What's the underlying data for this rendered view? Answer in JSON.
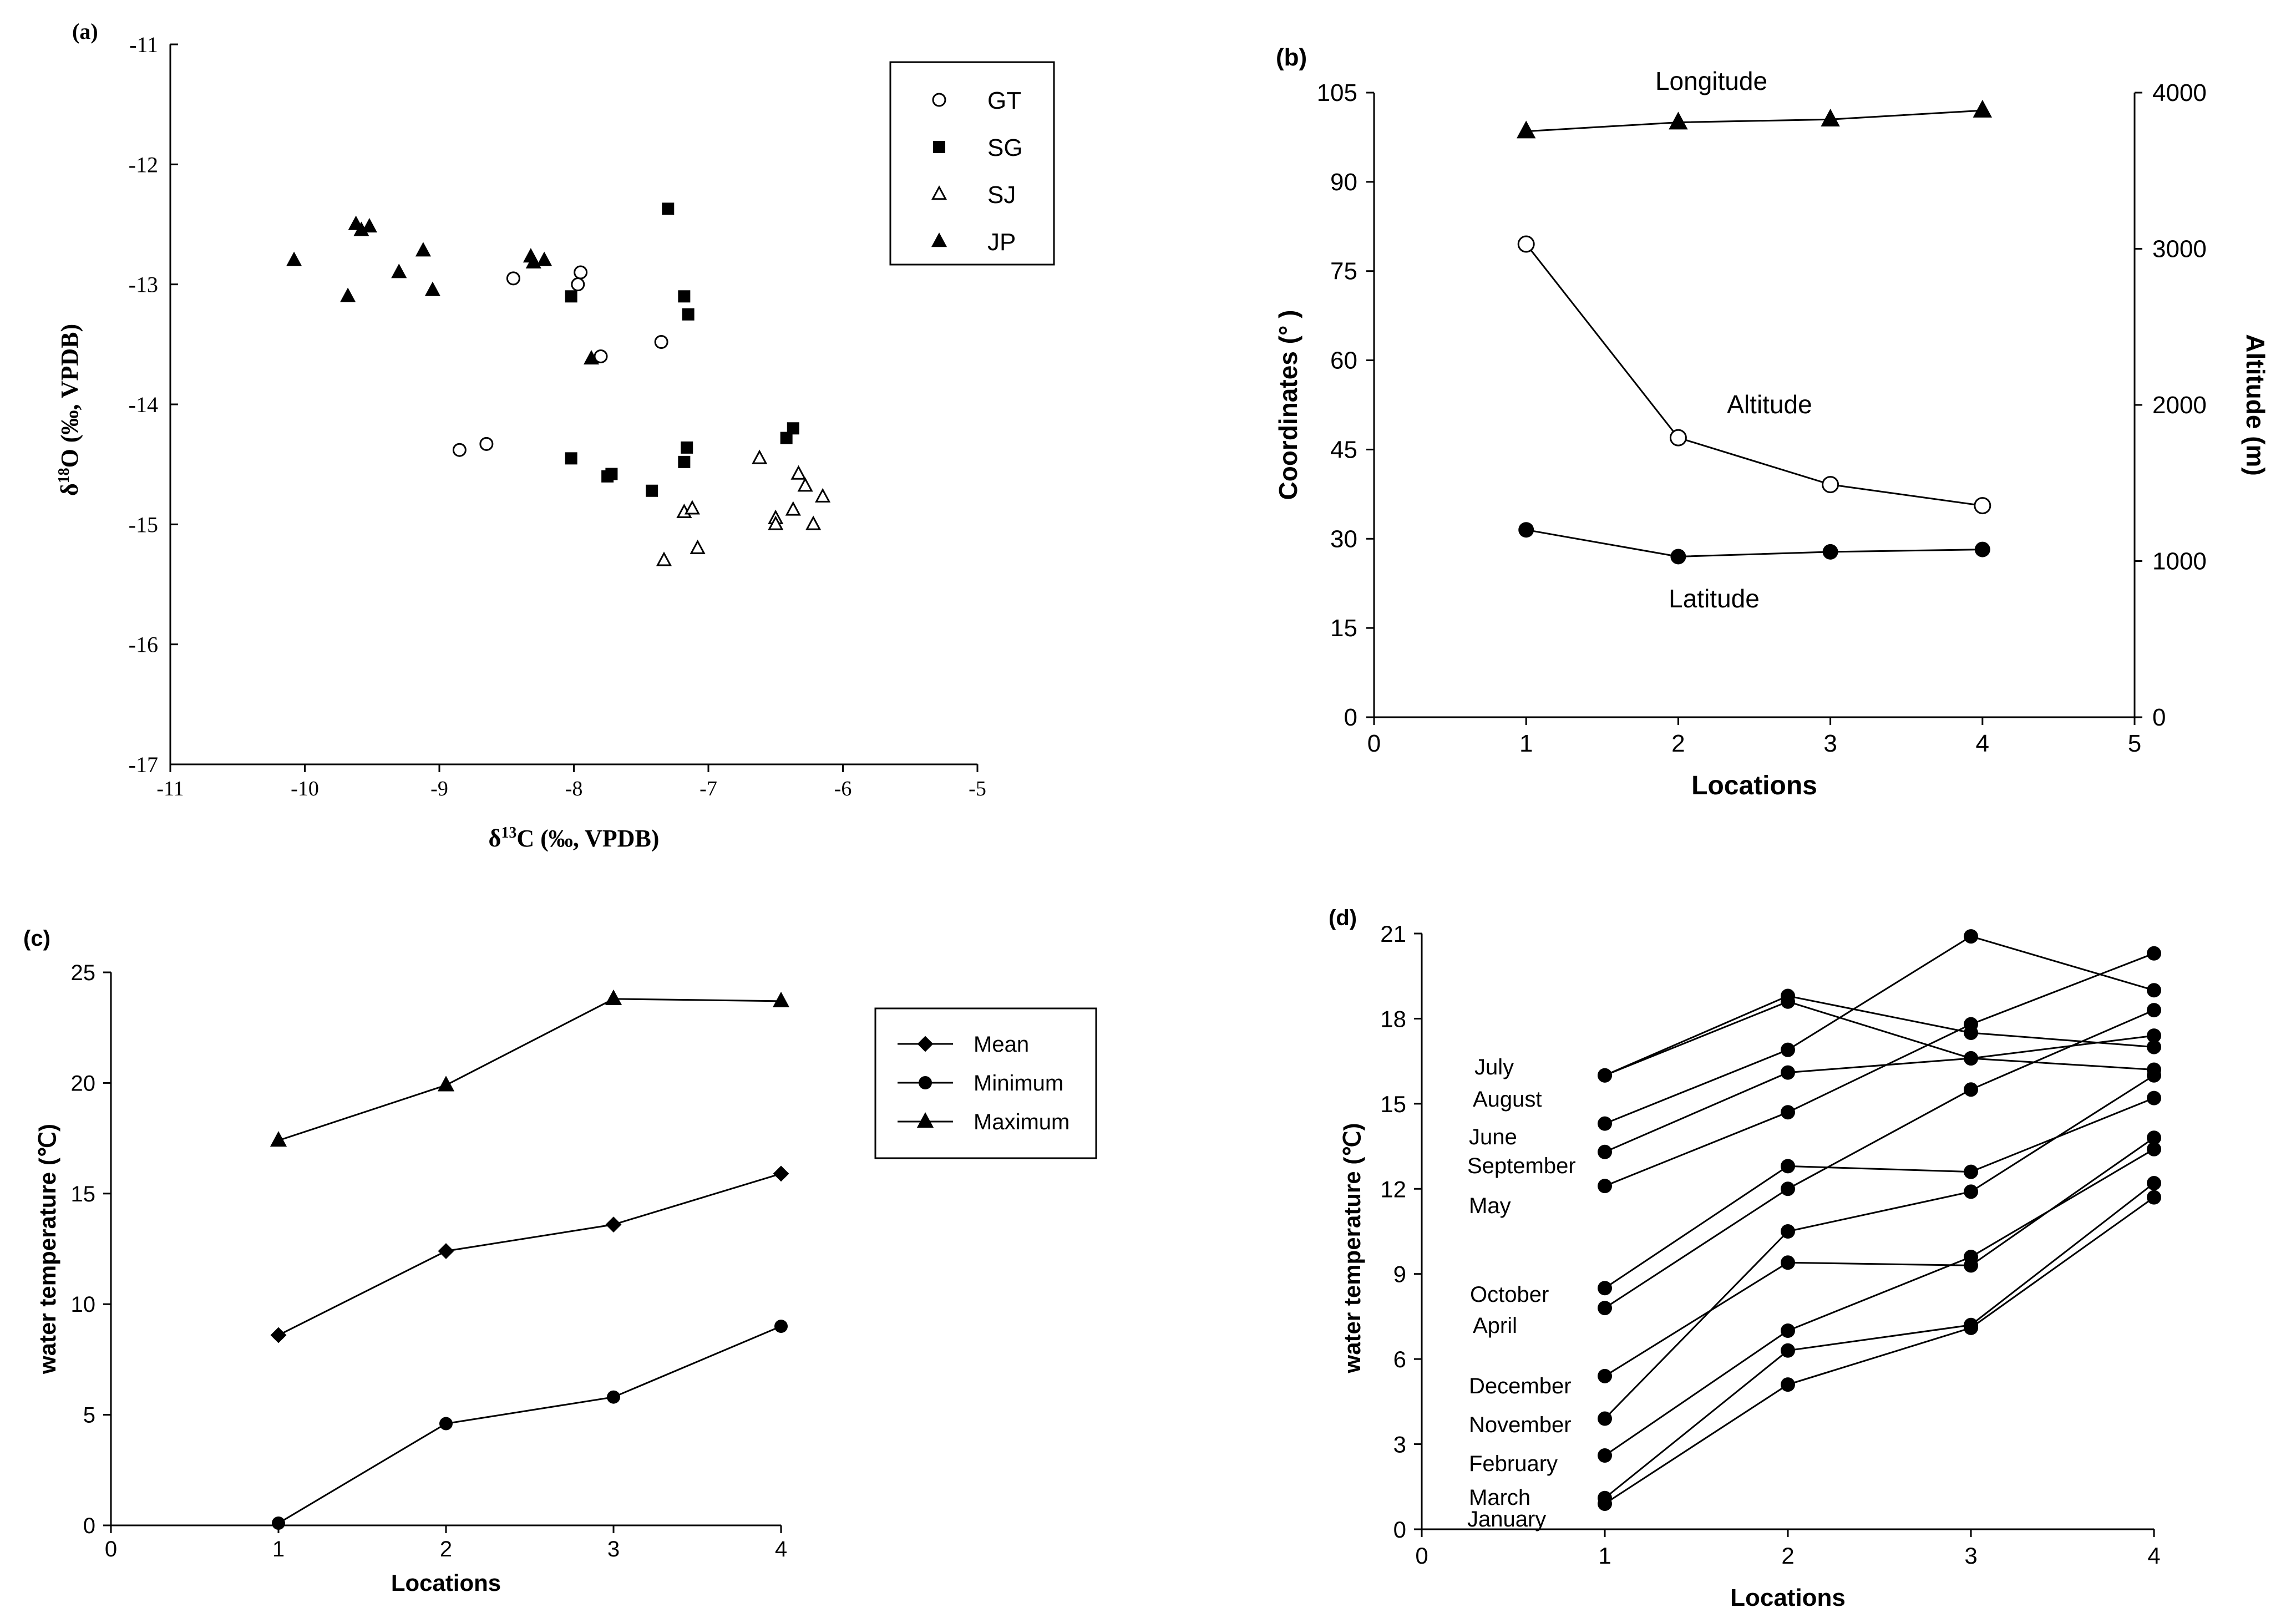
{
  "chart_data": [
    {
      "panel": "(a)",
      "type": "scatter",
      "xlabel": "δ13C (‰, VPDB)",
      "ylabel": "δ18O (‰, VPDB)",
      "xlim": [
        -11,
        -5
      ],
      "ylim": [
        -17,
        -11
      ],
      "xticks": [
        "-11",
        "-10",
        "-9",
        "-8",
        "-7",
        "-6",
        "-5"
      ],
      "yticks": [
        "-11",
        "-12",
        "-13",
        "-14",
        "-15",
        "-16",
        "-17"
      ],
      "legend": [
        "GT",
        "SG",
        "SJ",
        "JP"
      ],
      "series": [
        {
          "name": "GT",
          "marker": "circle-open",
          "points": [
            [
              -8.45,
              -12.95
            ],
            [
              -7.95,
              -12.9
            ],
            [
              -7.97,
              -13.0
            ],
            [
              -7.8,
              -13.6
            ],
            [
              -7.35,
              -13.48
            ],
            [
              -8.85,
              -14.38
            ],
            [
              -8.65,
              -14.33
            ]
          ]
        },
        {
          "name": "SG",
          "marker": "square-filled",
          "points": [
            [
              -7.3,
              -12.37
            ],
            [
              -8.02,
              -13.1
            ],
            [
              -7.18,
              -13.1
            ],
            [
              -7.15,
              -13.25
            ],
            [
              -8.02,
              -14.45
            ],
            [
              -7.75,
              -14.6
            ],
            [
              -7.72,
              -14.58
            ],
            [
              -7.42,
              -14.72
            ],
            [
              -7.18,
              -14.48
            ],
            [
              -7.16,
              -14.36
            ],
            [
              -6.42,
              -14.28
            ],
            [
              -6.37,
              -14.2
            ]
          ]
        },
        {
          "name": "SJ",
          "marker": "triangle-open",
          "points": [
            [
              -6.62,
              -14.45
            ],
            [
              -6.33,
              -14.58
            ],
            [
              -6.28,
              -14.68
            ],
            [
              -6.15,
              -14.77
            ],
            [
              -7.18,
              -14.9
            ],
            [
              -7.12,
              -14.87
            ],
            [
              -6.5,
              -14.95
            ],
            [
              -6.5,
              -15.0
            ],
            [
              -6.37,
              -14.88
            ],
            [
              -6.22,
              -15.0
            ],
            [
              -7.08,
              -15.2
            ],
            [
              -7.33,
              -15.3
            ]
          ]
        },
        {
          "name": "JP",
          "marker": "triangle-filled",
          "points": [
            [
              -9.62,
              -12.5
            ],
            [
              -9.58,
              -12.55
            ],
            [
              -9.52,
              -12.52
            ],
            [
              -9.12,
              -12.72
            ],
            [
              -8.32,
              -12.77
            ],
            [
              -8.3,
              -12.82
            ],
            [
              -8.22,
              -12.8
            ],
            [
              -10.08,
              -12.8
            ],
            [
              -9.3,
              -12.9
            ],
            [
              -9.05,
              -13.05
            ],
            [
              -9.68,
              -13.1
            ],
            [
              -7.87,
              -13.62
            ]
          ]
        }
      ]
    },
    {
      "panel": "(b)",
      "type": "line",
      "xlabel": "Locations",
      "ylabel": "Coordinates (° )",
      "ylabel_right": "Altitude (m)",
      "xlim": [
        0,
        5
      ],
      "ylim": [
        0,
        105
      ],
      "ylim_right": [
        0,
        4000
      ],
      "xticks": [
        "0",
        "1",
        "2",
        "3",
        "4",
        "5"
      ],
      "yticks": [
        "0",
        "15",
        "30",
        "45",
        "60",
        "75",
        "90",
        "105"
      ],
      "yticks_right": [
        "0",
        "1000",
        "2000",
        "3000",
        "4000"
      ],
      "x": [
        1,
        2,
        3,
        4
      ],
      "series": [
        {
          "name": "Longitude",
          "axis": "left",
          "marker": "triangle-filled",
          "values": [
            98.5,
            100.0,
            100.5,
            102.0
          ]
        },
        {
          "name": "Altitude",
          "axis": "right",
          "marker": "circle-open",
          "values": [
            3030,
            1790,
            1490,
            1355
          ]
        },
        {
          "name": "Latitude",
          "axis": "left",
          "marker": "circle-filled",
          "values": [
            31.5,
            27.0,
            27.8,
            28.2
          ]
        }
      ]
    },
    {
      "panel": "(c)",
      "type": "line",
      "xlabel": "Locations",
      "ylabel": "water temperature (℃)",
      "xlim": [
        0,
        4
      ],
      "ylim": [
        0,
        25
      ],
      "xticks": [
        "0",
        "1",
        "2",
        "3",
        "4"
      ],
      "yticks": [
        "0",
        "5",
        "10",
        "15",
        "20",
        "25"
      ],
      "x": [
        1,
        2,
        3,
        4
      ],
      "legend": [
        "Mean",
        "Minimum",
        "Maximum"
      ],
      "series": [
        {
          "name": "Mean",
          "marker": "diamond-filled",
          "values": [
            8.6,
            12.4,
            13.6,
            15.9
          ]
        },
        {
          "name": "Minimum",
          "marker": "circle-filled",
          "values": [
            0.1,
            4.6,
            5.8,
            9.0
          ]
        },
        {
          "name": "Maximum",
          "marker": "triangle-filled",
          "values": [
            17.4,
            19.9,
            23.8,
            23.7
          ]
        }
      ]
    },
    {
      "panel": "(d)",
      "type": "line",
      "xlabel": "Locations",
      "ylabel": "water temperature (℃)",
      "xlim": [
        0,
        4
      ],
      "ylim": [
        0,
        21
      ],
      "xticks": [
        "0",
        "1",
        "2",
        "3",
        "4"
      ],
      "yticks": [
        "0",
        "3",
        "6",
        "9",
        "12",
        "15",
        "18",
        "21"
      ],
      "x": [
        1,
        2,
        3,
        4
      ],
      "series": [
        {
          "name": "July",
          "values": [
            16.0,
            18.8,
            17.5,
            17.0
          ]
        },
        {
          "name": "August",
          "values": [
            16.0,
            18.6,
            16.6,
            16.2
          ]
        },
        {
          "name": "June",
          "values": [
            14.3,
            16.9,
            20.9,
            19.0
          ]
        },
        {
          "name": "September",
          "values": [
            13.3,
            16.1,
            16.6,
            17.4
          ]
        },
        {
          "name": "May",
          "values": [
            12.1,
            14.7,
            17.8,
            20.3
          ]
        },
        {
          "name": "October",
          "values": [
            8.5,
            12.8,
            12.6,
            15.2
          ]
        },
        {
          "name": "April",
          "values": [
            7.8,
            12.0,
            15.5,
            18.3
          ]
        },
        {
          "name": "December",
          "values": [
            5.4,
            9.4,
            9.3,
            13.8
          ]
        },
        {
          "name": "November",
          "values": [
            3.9,
            10.5,
            11.9,
            16.0
          ]
        },
        {
          "name": "February",
          "values": [
            2.6,
            7.0,
            9.6,
            13.4
          ]
        },
        {
          "name": "March",
          "values": [
            1.1,
            6.3,
            7.2,
            12.2
          ]
        },
        {
          "name": "January",
          "values": [
            0.9,
            5.1,
            7.1,
            11.7
          ]
        }
      ]
    }
  ]
}
